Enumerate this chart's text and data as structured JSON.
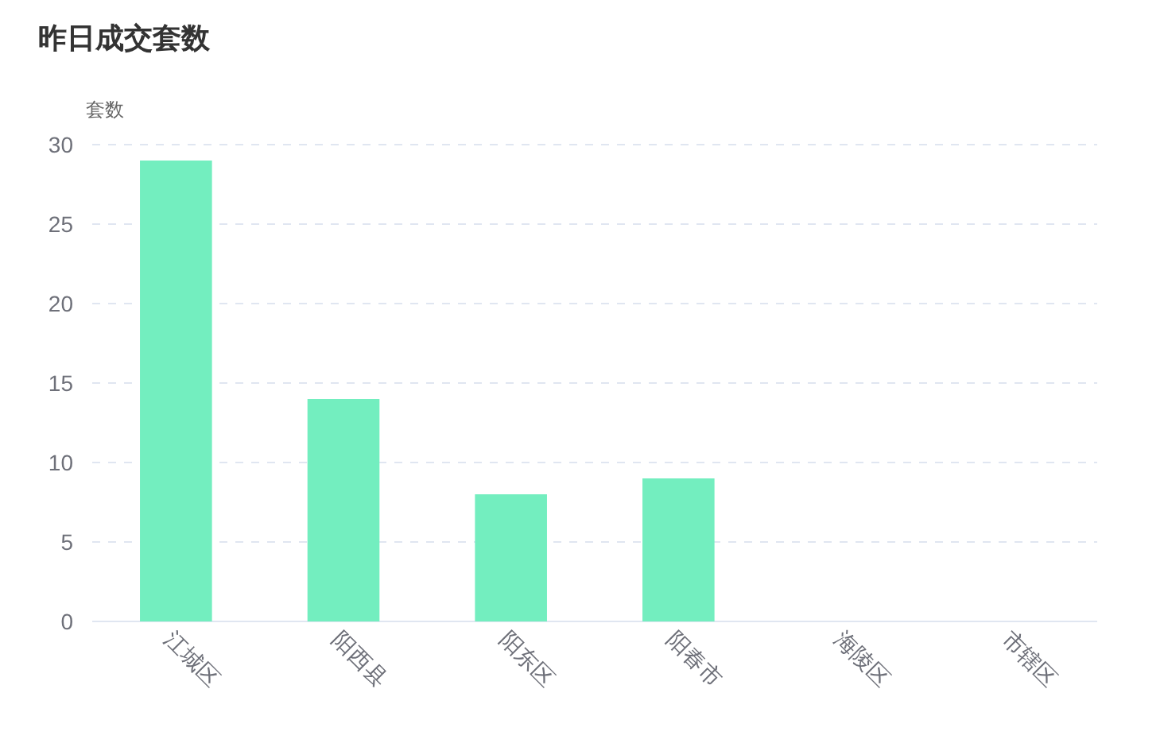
{
  "chart_data": {
    "type": "bar",
    "title": "昨日成交套数",
    "ylabel": "套数",
    "categories": [
      "江城区",
      "阳西县",
      "阳东区",
      "阳春市",
      "海陵区",
      "市辖区"
    ],
    "series": [
      {
        "color": "#73eebf",
        "values": [
          29,
          14,
          8,
          9,
          0,
          0
        ]
      }
    ],
    "ylim": [
      0,
      30
    ],
    "yticks": [
      0,
      5,
      10,
      15,
      20,
      25,
      30
    ],
    "grid": "y"
  }
}
